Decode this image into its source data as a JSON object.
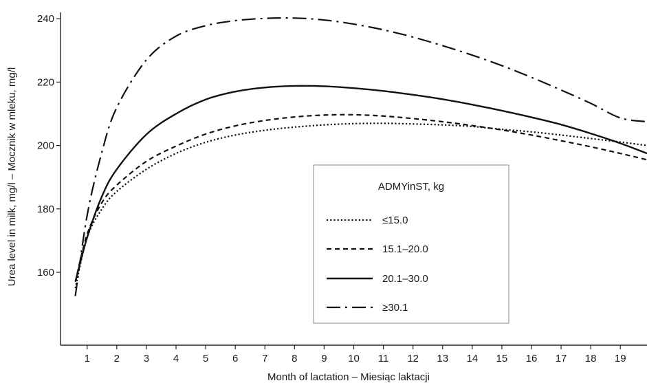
{
  "chart_data": {
    "type": "line",
    "xlabel": "Month of lactation – Miesiąc laktacji",
    "ylabel": "Urea level in milk, mg/l – Mocznik w mleku, mg/l",
    "xlim": [
      0.1,
      19.9
    ],
    "ylim": [
      137,
      242
    ],
    "x_ticks": [
      1,
      2,
      3,
      4,
      5,
      6,
      7,
      8,
      9,
      10,
      11,
      12,
      13,
      14,
      15,
      16,
      17,
      18,
      19
    ],
    "y_ticks": [
      160,
      180,
      200,
      220,
      240
    ],
    "grid": false,
    "legend": {
      "title": "ADMYinST, kg",
      "placement": "center-right"
    },
    "series": [
      {
        "name": "≤15.0",
        "style": "dotted",
        "color": "#111111",
        "x": [
          0.6,
          1,
          1.5,
          2,
          3,
          4,
          5,
          6,
          7,
          8,
          9,
          10,
          11,
          12,
          13,
          14,
          15,
          16,
          17,
          18,
          19,
          19.9
        ],
        "y": [
          155,
          171,
          180,
          185.5,
          192.5,
          197.5,
          201,
          203.3,
          204.8,
          205.8,
          206.5,
          206.9,
          207,
          206.8,
          206.5,
          206,
          205.1,
          204.3,
          203.3,
          202.2,
          201.1,
          200
        ]
      },
      {
        "name": "15.1–20.0",
        "style": "dashed",
        "color": "#111111",
        "x": [
          0.6,
          1,
          1.5,
          2,
          3,
          4,
          5,
          6,
          7,
          8,
          9,
          10,
          11,
          12,
          13,
          14,
          15,
          16,
          17,
          18,
          19,
          19.9
        ],
        "y": [
          157,
          172,
          182,
          187.5,
          195,
          199.8,
          203.6,
          206.2,
          207.9,
          209,
          209.6,
          209.7,
          209.3,
          208.5,
          207.5,
          206.3,
          204.9,
          203.3,
          201.5,
          199.6,
          197.5,
          195.5
        ]
      },
      {
        "name": "20.1–30.0",
        "style": "solid",
        "color": "#111111",
        "x": [
          0.6,
          1,
          1.5,
          2,
          3,
          4,
          5,
          6,
          7,
          8,
          9,
          10,
          11,
          12,
          13,
          14,
          15,
          16,
          17,
          18,
          19,
          19.9
        ],
        "y": [
          157,
          171,
          184,
          192.5,
          203.5,
          210,
          214.5,
          217,
          218.3,
          218.8,
          218.7,
          218.1,
          217.2,
          216,
          214.6,
          212.9,
          211,
          208.9,
          206.6,
          203.8,
          200.7,
          197.5
        ]
      },
      {
        "name": "≥30.1",
        "style": "dash-dot",
        "color": "#111111",
        "x": [
          0.6,
          1,
          1.5,
          2,
          3,
          4,
          5,
          6,
          7,
          8,
          9,
          10,
          11,
          12,
          13,
          14,
          15,
          16,
          17,
          18,
          19,
          19.9
        ],
        "y": [
          152.5,
          178,
          198,
          212,
          227,
          234.5,
          237.8,
          239.4,
          240.1,
          240.2,
          239.6,
          238.3,
          236.5,
          234.2,
          231.5,
          228.5,
          225.2,
          221.5,
          217.5,
          213.3,
          208.7,
          207.5
        ]
      }
    ]
  }
}
